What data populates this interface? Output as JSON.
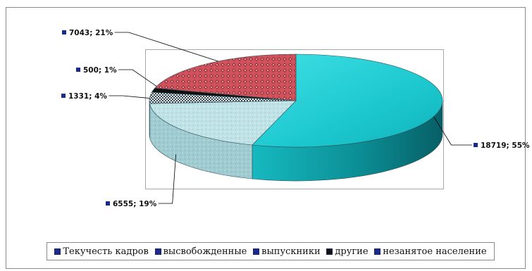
{
  "chart_data": {
    "type": "pie",
    "title": "",
    "legend_placement": "bottom",
    "series": [
      {
        "name": "Текучесть кадров",
        "value": 18719,
        "percent": 55,
        "label": "18719; 55%",
        "color": "#14c6cc",
        "pattern": "solid"
      },
      {
        "name": "высвобожденные",
        "value": 6555,
        "percent": 19,
        "label": "6555; 19%",
        "color": "#b6dde2",
        "pattern": "speckle"
      },
      {
        "name": "выпускники",
        "value": 1331,
        "percent": 4,
        "label": "1331; 4%",
        "color": "#a9c4cc",
        "pattern": "checker"
      },
      {
        "name": "другие",
        "value": 500,
        "percent": 1,
        "label": "500; 1%",
        "color": "#111111",
        "pattern": "solid"
      },
      {
        "name": "незанятое население",
        "value": 7043,
        "percent": 21,
        "label": "7043; 21%",
        "color": "#cf4a55",
        "pattern": "diamond"
      }
    ]
  },
  "colors": {
    "label_marker": "#1a2a8c",
    "leader_line": "#000000"
  }
}
